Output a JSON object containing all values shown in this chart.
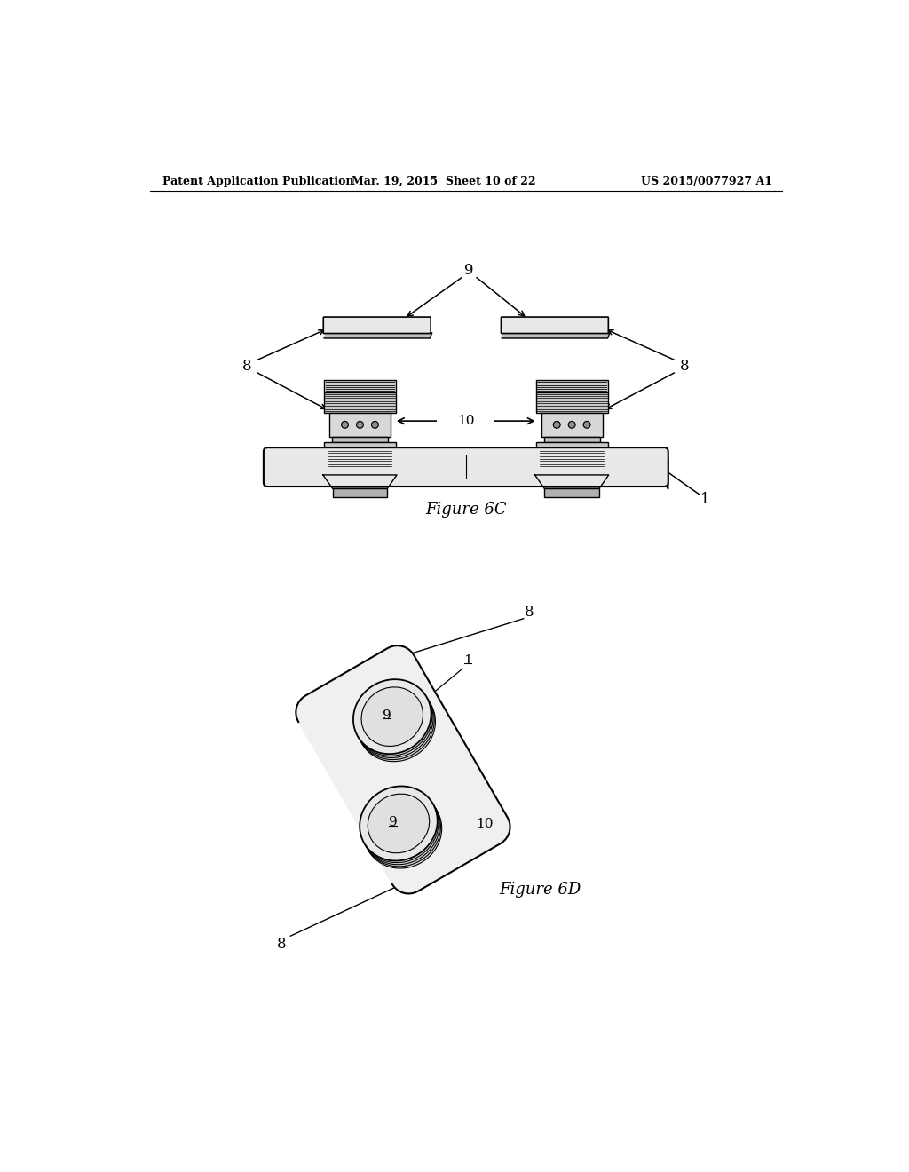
{
  "background_color": "#ffffff",
  "header_left": "Patent Application Publication",
  "header_mid": "Mar. 19, 2015  Sheet 10 of 22",
  "header_right": "US 2015/0077927 A1",
  "fig6c_label": "Figure 6C",
  "fig6d_label": "Figure 6D",
  "text_color": "#000000",
  "line_color": "#000000",
  "gray_light": "#e8e8e8",
  "gray_mid": "#c0c0c0",
  "gray_dark": "#888888"
}
